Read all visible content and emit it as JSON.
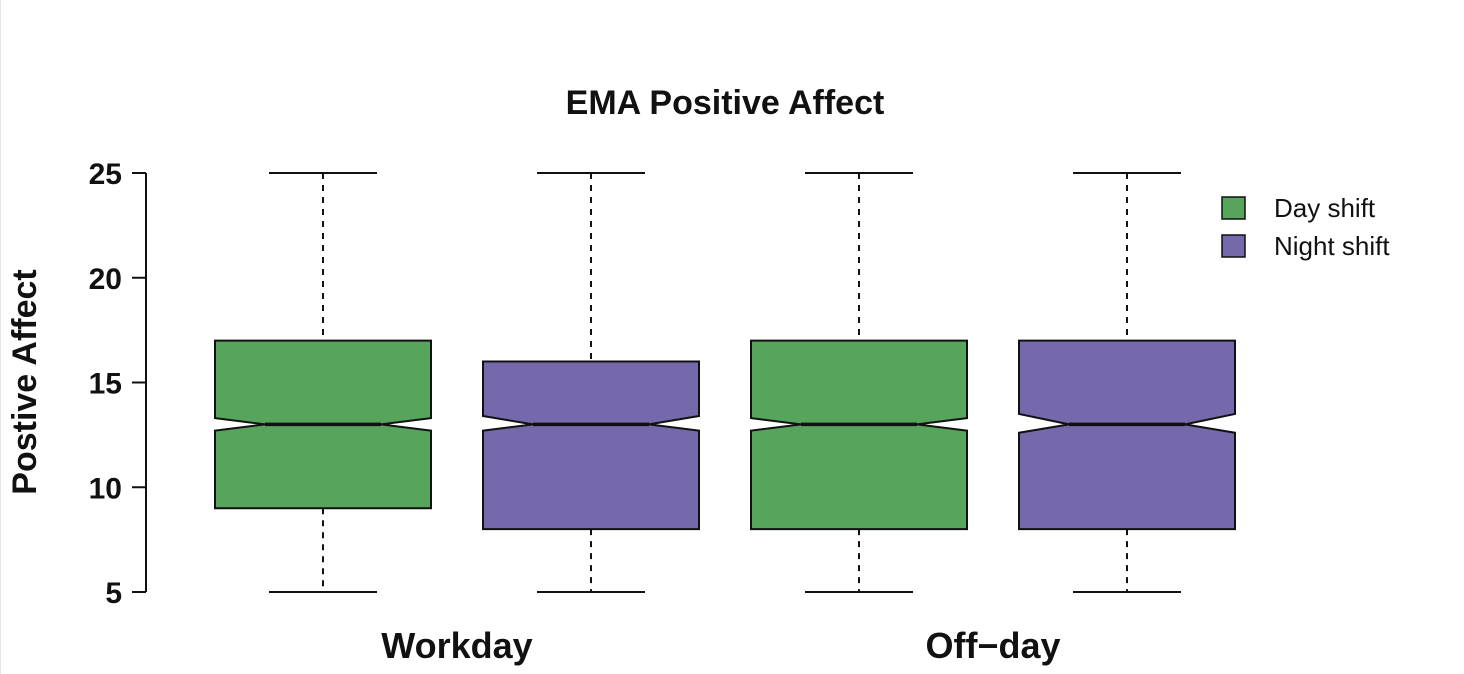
{
  "chart_data": {
    "type": "boxplot",
    "title": "EMA Positive Affect",
    "xlabel": "",
    "ylabel": "Postive Affect",
    "ylim": [
      5,
      25
    ],
    "yticks": [
      5,
      10,
      15,
      20,
      25
    ],
    "notched": true,
    "categories": [
      "Workday",
      "Off−day"
    ],
    "legend": {
      "position": "top-right",
      "entries": [
        "Day shift",
        "Night shift"
      ]
    },
    "colors": {
      "Day shift": "#57a55d",
      "Night shift": "#7568ab"
    },
    "series": [
      {
        "name": "Day shift",
        "boxes": [
          {
            "category": "Workday",
            "whisker_low": 5,
            "q1": 9,
            "median": 13,
            "q3": 17,
            "whisker_high": 25,
            "notch_low": 12.7,
            "notch_high": 13.3
          },
          {
            "category": "Off−day",
            "whisker_low": 5,
            "q1": 8,
            "median": 13,
            "q3": 17,
            "whisker_high": 25,
            "notch_low": 12.7,
            "notch_high": 13.3
          }
        ]
      },
      {
        "name": "Night shift",
        "boxes": [
          {
            "category": "Workday",
            "whisker_low": 5,
            "q1": 8,
            "median": 13,
            "q3": 16,
            "whisker_high": 25,
            "notch_low": 12.7,
            "notch_high": 13.4
          },
          {
            "category": "Off−day",
            "whisker_low": 5,
            "q1": 8,
            "median": 13,
            "q3": 17,
            "whisker_high": 25,
            "notch_low": 12.6,
            "notch_high": 13.5
          }
        ]
      }
    ]
  }
}
